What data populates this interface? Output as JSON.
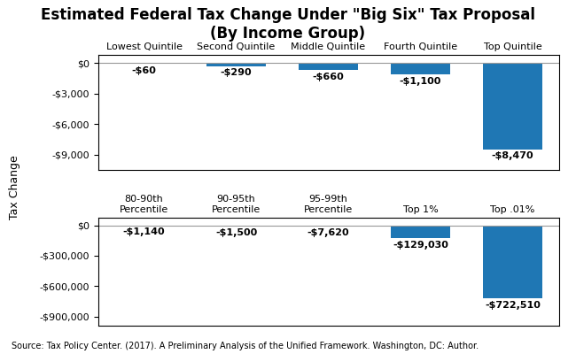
{
  "title": "Estimated Federal Tax Change Under \"Big Six\" Tax Proposal\n(By Income Group)",
  "ylabel": "Tax Change",
  "annotations": [
    "Source: Tax Policy Center. (2017). A Preliminary Analysis of the Unified Framework. Washington, DC: Author."
  ],
  "chart_data": [
    {
      "type": "bar",
      "categories": [
        "Lowest Quintile",
        "Second Quintile",
        "Middle Quintile",
        "Fourth Quintile",
        "Top Quintile"
      ],
      "values": [
        -60,
        -290,
        -660,
        -1100,
        -8470
      ],
      "value_labels": [
        "-$60",
        "-$290",
        "-$660",
        "-$1,100",
        "-$8,470"
      ],
      "data_labels": true,
      "ylim": [
        -10500,
        800
      ],
      "yticks": [
        {
          "value": 0,
          "label": "$0"
        },
        {
          "value": -3000,
          "label": "-$3,000"
        },
        {
          "value": -6000,
          "label": "-$6,000"
        },
        {
          "value": -9000,
          "label": "-$9,000"
        }
      ]
    },
    {
      "type": "bar",
      "categories": [
        "80-90th\nPercentile",
        "90-95th\nPercentile",
        "95-99th\nPercentile",
        "Top 1%",
        "Top .01%"
      ],
      "values": [
        -1140,
        -1500,
        -7620,
        -129030,
        -722510
      ],
      "value_labels": [
        "-$1,140",
        "-$1,500",
        "-$7,620",
        "-$129,030",
        "-$722,510"
      ],
      "data_labels": true,
      "ylim": [
        -990000,
        75000
      ],
      "yticks": [
        {
          "value": 0,
          "label": "$0"
        },
        {
          "value": -300000,
          "label": "-$300,000"
        },
        {
          "value": -600000,
          "label": "-$600,000"
        },
        {
          "value": -900000,
          "label": "-$900,000"
        }
      ]
    }
  ]
}
